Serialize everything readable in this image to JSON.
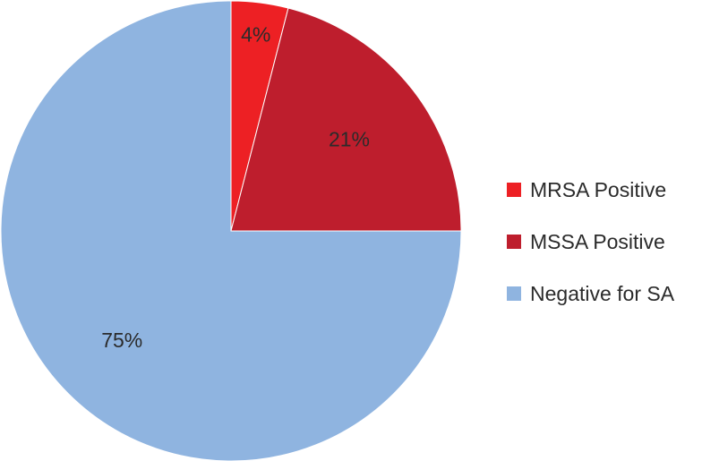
{
  "chart_data": {
    "type": "pie",
    "title": "",
    "categories": [
      "MRSA Positive",
      "MSSA Positive",
      "Negative for SA"
    ],
    "values": [
      4,
      21,
      75
    ],
    "unit": "%",
    "data_labels": [
      "4%",
      "21%",
      "75%"
    ],
    "colors": [
      "#ed2024",
      "#be1e2d",
      "#8fb4e0"
    ],
    "start_angle_deg": 0,
    "direction": "clockwise",
    "legend_position": "right"
  },
  "legend": {
    "items": [
      {
        "label": "MRSA Positive",
        "color": "#ed2024"
      },
      {
        "label": "MSSA Positive",
        "color": "#be1e2d"
      },
      {
        "label": "Negative for SA",
        "color": "#8fb4e0"
      }
    ]
  }
}
